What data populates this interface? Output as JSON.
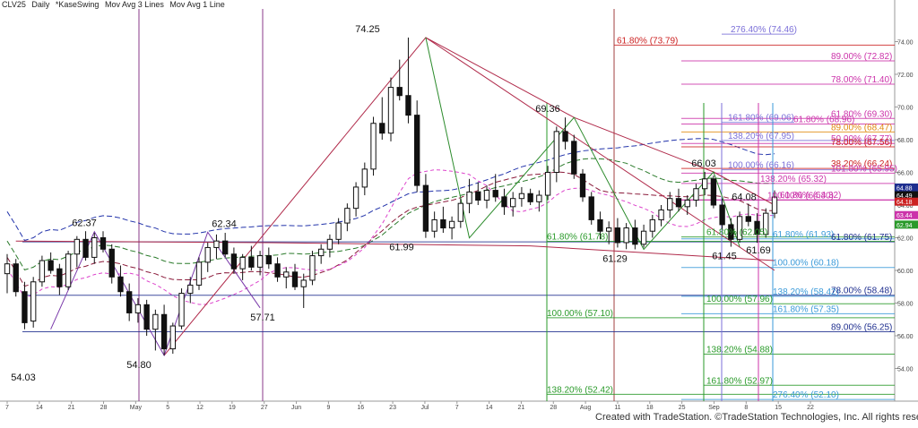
{
  "header": {
    "symbol": "CLV25",
    "interval": "Daily",
    "study1": "*KaseSwing",
    "study2": "Mov Avg 3 Lines",
    "study3": "Mov Avg 1 Line"
  },
  "copyright": "Created with TradeStation. ©TradeStation Technologies, Inc. All rights reserved.",
  "chart_data": {
    "type": "candlestick",
    "y_range": [
      52.0,
      76.0
    ],
    "y_ticks": [
      "74.00",
      "72.00",
      "70.00",
      "68.00",
      "66.00",
      "64.00",
      "62.00",
      "60.00",
      "58.00",
      "56.00",
      "54.00"
    ],
    "x_ticks": [
      "7",
      "14",
      "21",
      "28",
      "May",
      "5",
      "12",
      "19",
      "27",
      "Jun",
      "9",
      "16",
      "23",
      "Jul",
      "7",
      "14",
      "21",
      "28",
      "Aug",
      "11",
      "18",
      "25",
      "Sep",
      "8",
      "15",
      "22"
    ],
    "swing_labels": [
      {
        "text": "74.25",
        "price": 74.25
      },
      {
        "text": "69.36",
        "price": 69.36
      },
      {
        "text": "66.03",
        "price": 66.03
      },
      {
        "text": "62.37",
        "price": 62.37
      },
      {
        "text": "62.34",
        "price": 62.34
      },
      {
        "text": "64.08",
        "price": 64.08
      },
      {
        "text": "61.99",
        "price": 61.99
      },
      {
        "text": "61.29",
        "price": 61.29
      },
      {
        "text": "61.45",
        "price": 61.45
      },
      {
        "text": "61.69",
        "price": 61.69
      },
      {
        "text": "57.71",
        "price": 57.71
      },
      {
        "text": "54.80",
        "price": 54.8
      },
      {
        "text": "54.03",
        "price": 54.03
      }
    ],
    "levels": [
      {
        "text": "276.40% (74.46)",
        "price": 74.46,
        "color": "#7b6fd8"
      },
      {
        "text": "61.80% (73.79)",
        "price": 73.79,
        "color": "#cc2222"
      },
      {
        "text": "89.00% (72.82)",
        "price": 72.82,
        "color": "#cc33aa"
      },
      {
        "text": "78.00% (71.40)",
        "price": 71.4,
        "color": "#cc33aa"
      },
      {
        "text": "61.80% (69.30)",
        "price": 69.3,
        "color": "#cc33aa"
      },
      {
        "text": "161.80% (69.06)",
        "price": 69.06,
        "color": "#7b6fd8"
      },
      {
        "text": "61.80% (68.96)",
        "price": 68.96,
        "color": "#cc33aa"
      },
      {
        "text": "89.00% (68.47)",
        "price": 68.47,
        "color": "#e08a10"
      },
      {
        "text": "138.20% (67.95)",
        "price": 67.95,
        "color": "#7b6fd8"
      },
      {
        "text": "50.00% (67.77)",
        "price": 67.77,
        "color": "#cc33aa"
      },
      {
        "text": "78.00% (67.56)",
        "price": 67.56,
        "color": "#cc2222"
      },
      {
        "text": "100.00% (66.16)",
        "price": 66.16,
        "color": "#7b6fd8"
      },
      {
        "text": "38.20% (66.24)",
        "price": 66.24,
        "color": "#cc2222"
      },
      {
        "text": "101.80% (65.95)",
        "price": 65.95,
        "color": "#cc33aa"
      },
      {
        "text": "138.20% (65.32)",
        "price": 65.32,
        "color": "#cc33aa"
      },
      {
        "text": "61.80% (64.32)",
        "price": 64.32,
        "color": "#cc33aa"
      },
      {
        "text": "100.00% (64.30)",
        "price": 64.3,
        "color": "#cc33aa"
      },
      {
        "text": "61.80% (61.93)",
        "price": 61.93,
        "color": "#3a9ad9"
      },
      {
        "text": "61.80% (61.75)",
        "price": 61.75,
        "color": "#1f2f8f"
      },
      {
        "text": "61.80% (61.78)",
        "price": 61.78,
        "color": "#2a9a2a"
      },
      {
        "text": "61.80% (62.05)",
        "price": 62.05,
        "color": "#2a9a2a"
      },
      {
        "text": "100.00% (60.18)",
        "price": 60.18,
        "color": "#3a9ad9"
      },
      {
        "text": "138.20% (58.42)",
        "price": 58.42,
        "color": "#3a9ad9"
      },
      {
        "text": "78.00% (58.48)",
        "price": 58.48,
        "color": "#1f2f8f"
      },
      {
        "text": "100.00% (57.96)",
        "price": 57.96,
        "color": "#2a9a2a"
      },
      {
        "text": "161.80% (57.35)",
        "price": 57.35,
        "color": "#3a9ad9"
      },
      {
        "text": "100.00% (57.10)",
        "price": 57.1,
        "color": "#2a9a2a"
      },
      {
        "text": "89.00% (56.25)",
        "price": 56.25,
        "color": "#1f2f8f"
      },
      {
        "text": "138.20% (54.88)",
        "price": 54.88,
        "color": "#2a9a2a"
      },
      {
        "text": "161.80% (52.97)",
        "price": 52.97,
        "color": "#2a9a2a"
      },
      {
        "text": "138.20% (52.42)",
        "price": 52.42,
        "color": "#2a9a2a"
      },
      {
        "text": "276.40% (52.10)",
        "price": 52.1,
        "color": "#3a9ad9"
      }
    ],
    "price_tags": [
      {
        "text": "64.88",
        "price": 64.88,
        "color": "#1f2f8f"
      },
      {
        "text": "64.49",
        "price": 64.49,
        "color": "#111111"
      },
      {
        "text": "64.18",
        "price": 64.18,
        "color": "#cc2222"
      },
      {
        "text": "63.44",
        "price": 63.44,
        "color": "#cc33aa"
      },
      {
        "text": "62.94",
        "price": 62.94,
        "color": "#2a9a2a"
      }
    ],
    "candles": [
      [
        59.8,
        61.0,
        58.6,
        60.4
      ],
      [
        60.4,
        60.7,
        58.4,
        58.7
      ],
      [
        58.7,
        59.3,
        56.4,
        56.8
      ],
      [
        56.9,
        59.6,
        56.5,
        59.3
      ],
      [
        59.3,
        60.9,
        59.0,
        60.6
      ],
      [
        60.6,
        61.1,
        59.8,
        60.0
      ],
      [
        60.1,
        60.4,
        58.5,
        59.0
      ],
      [
        59.0,
        61.2,
        58.8,
        61.0
      ],
      [
        61.0,
        62.1,
        60.2,
        61.9
      ],
      [
        61.9,
        62.4,
        60.6,
        60.8
      ],
      [
        60.8,
        62.3,
        60.4,
        62.0
      ],
      [
        62.0,
        62.4,
        61.1,
        61.3
      ],
      [
        61.3,
        61.6,
        59.2,
        59.6
      ],
      [
        59.6,
        60.3,
        58.4,
        58.7
      ],
      [
        58.7,
        59.2,
        56.9,
        57.4
      ],
      [
        57.4,
        58.3,
        56.8,
        57.9
      ],
      [
        57.9,
        58.2,
        56.0,
        56.4
      ],
      [
        56.4,
        57.6,
        55.1,
        57.3
      ],
      [
        57.3,
        57.9,
        54.8,
        55.2
      ],
      [
        55.2,
        56.8,
        54.9,
        56.6
      ],
      [
        56.6,
        58.9,
        56.4,
        58.6
      ],
      [
        58.6,
        59.6,
        58.0,
        59.1
      ],
      [
        59.1,
        60.8,
        58.8,
        60.5
      ],
      [
        60.5,
        61.7,
        59.9,
        61.4
      ],
      [
        61.4,
        62.2,
        60.7,
        61.8
      ],
      [
        61.8,
        62.3,
        60.8,
        61.0
      ],
      [
        61.0,
        61.4,
        59.8,
        60.1
      ],
      [
        60.1,
        61.0,
        59.4,
        60.8
      ],
      [
        60.8,
        61.5,
        60.0,
        60.2
      ],
      [
        60.2,
        61.2,
        59.7,
        60.9
      ],
      [
        60.9,
        61.4,
        60.1,
        60.4
      ],
      [
        60.4,
        60.8,
        59.3,
        59.6
      ],
      [
        59.6,
        60.2,
        58.9,
        59.9
      ],
      [
        59.9,
        60.4,
        58.8,
        59.0
      ],
      [
        59.0,
        59.8,
        57.7,
        59.4
      ],
      [
        59.4,
        61.2,
        59.1,
        60.9
      ],
      [
        60.9,
        61.6,
        60.4,
        61.3
      ],
      [
        61.3,
        62.2,
        60.8,
        61.9
      ],
      [
        61.9,
        63.2,
        61.6,
        62.9
      ],
      [
        62.9,
        64.1,
        62.4,
        63.8
      ],
      [
        63.8,
        65.4,
        63.3,
        65.1
      ],
      [
        65.1,
        66.6,
        64.6,
        66.2
      ],
      [
        66.2,
        69.4,
        65.8,
        69.0
      ],
      [
        69.0,
        70.6,
        68.0,
        68.4
      ],
      [
        68.4,
        71.8,
        67.9,
        71.2
      ],
      [
        71.2,
        72.9,
        70.4,
        70.7
      ],
      [
        70.7,
        74.25,
        69.0,
        69.5
      ],
      [
        69.5,
        70.4,
        64.8,
        65.2
      ],
      [
        65.2,
        65.9,
        61.99,
        62.4
      ],
      [
        62.4,
        63.6,
        62.0,
        63.1
      ],
      [
        63.1,
        63.9,
        62.3,
        62.6
      ],
      [
        62.6,
        63.3,
        61.9,
        63.0
      ],
      [
        63.0,
        64.4,
        62.6,
        64.1
      ],
      [
        64.1,
        65.6,
        63.5,
        64.8
      ],
      [
        64.8,
        65.4,
        64.0,
        64.3
      ],
      [
        64.3,
        65.2,
        63.8,
        64.9
      ],
      [
        64.9,
        65.9,
        64.2,
        64.5
      ],
      [
        64.5,
        65.0,
        63.4,
        63.9
      ],
      [
        63.9,
        64.8,
        63.3,
        64.4
      ],
      [
        64.4,
        65.1,
        63.9,
        64.7
      ],
      [
        64.7,
        65.0,
        64.0,
        64.2
      ],
      [
        64.2,
        64.9,
        63.6,
        64.6
      ],
      [
        64.6,
        66.4,
        64.3,
        66.0
      ],
      [
        66.0,
        68.8,
        65.4,
        68.5
      ],
      [
        68.5,
        69.36,
        67.4,
        67.9
      ],
      [
        67.9,
        68.3,
        65.6,
        65.9
      ],
      [
        65.9,
        66.2,
        64.2,
        64.5
      ],
      [
        64.5,
        64.8,
        62.8,
        63.1
      ],
      [
        63.1,
        63.6,
        61.9,
        62.4
      ],
      [
        62.4,
        63.0,
        61.6,
        62.6
      ],
      [
        62.6,
        63.2,
        61.4,
        61.7
      ],
      [
        61.7,
        62.9,
        61.3,
        62.6
      ],
      [
        62.6,
        63.1,
        61.29,
        61.6
      ],
      [
        61.6,
        62.8,
        61.4,
        62.4
      ],
      [
        62.4,
        63.4,
        62.0,
        63.1
      ],
      [
        63.1,
        64.0,
        62.7,
        63.7
      ],
      [
        63.7,
        64.8,
        63.2,
        64.4
      ],
      [
        64.4,
        65.0,
        63.6,
        63.9
      ],
      [
        63.9,
        64.6,
        63.4,
        64.3
      ],
      [
        64.3,
        65.3,
        63.9,
        65.0
      ],
      [
        65.0,
        66.03,
        64.6,
        65.6
      ],
      [
        65.6,
        65.8,
        63.8,
        64.0
      ],
      [
        64.0,
        64.4,
        62.5,
        62.8
      ],
      [
        62.8,
        63.2,
        61.45,
        61.9
      ],
      [
        61.9,
        63.6,
        61.7,
        63.3
      ],
      [
        63.3,
        64.08,
        62.7,
        63.0
      ],
      [
        63.0,
        63.5,
        61.69,
        62.2
      ],
      [
        62.2,
        63.8,
        62.0,
        63.5
      ],
      [
        63.5,
        64.9,
        63.2,
        64.49
      ]
    ]
  }
}
